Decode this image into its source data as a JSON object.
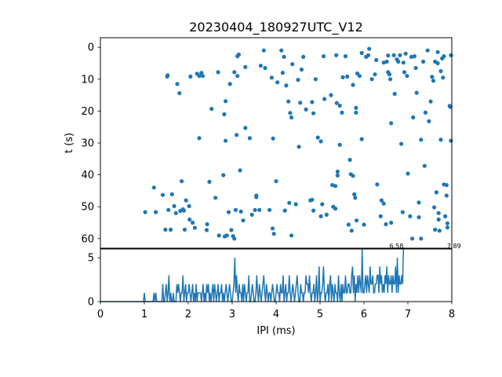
{
  "chart_data": [
    {
      "type": "scatter",
      "title": "20230404_180927UTC_V12",
      "ylabel": "t (s)",
      "xlim": [
        0,
        8
      ],
      "ylim": [
        63,
        -3
      ],
      "y_inverted": true,
      "yticks": [
        "0",
        "10",
        "20",
        "30",
        "40",
        "50",
        "60"
      ],
      "color": "#1f77b4",
      "points": [
        [
          1.02,
          51.7
        ],
        [
          1.22,
          44.0
        ],
        [
          1.26,
          51.7
        ],
        [
          1.42,
          46.3
        ],
        [
          1.48,
          57.2
        ],
        [
          1.52,
          9.2
        ],
        [
          1.53,
          8.8
        ],
        [
          1.55,
          51.0
        ],
        [
          1.6,
          57.2
        ],
        [
          1.63,
          46.1
        ],
        [
          1.68,
          49.8
        ],
        [
          1.72,
          52.0
        ],
        [
          1.75,
          11.5
        ],
        [
          1.8,
          14.4
        ],
        [
          1.82,
          51.3
        ],
        [
          1.85,
          42.0
        ],
        [
          1.88,
          50.8
        ],
        [
          1.9,
          51.2
        ],
        [
          1.92,
          57.2
        ],
        [
          1.95,
          48.0
        ],
        [
          2.02,
          49.8
        ],
        [
          2.03,
          54.0
        ],
        [
          2.05,
          9.2
        ],
        [
          2.1,
          55.0
        ],
        [
          2.15,
          56.6
        ],
        [
          2.2,
          8.3
        ],
        [
          2.25,
          9.0
        ],
        [
          2.25,
          28.5
        ],
        [
          2.3,
          8.0
        ],
        [
          2.33,
          9.0
        ],
        [
          2.42,
          57.3
        ],
        [
          2.43,
          55.5
        ],
        [
          2.48,
          42.2
        ],
        [
          2.53,
          19.3
        ],
        [
          2.62,
          47.2
        ],
        [
          2.68,
          7.8
        ],
        [
          2.7,
          59.0
        ],
        [
          2.8,
          40.1
        ],
        [
          2.83,
          59.3
        ],
        [
          2.82,
          21.0
        ],
        [
          2.85,
          16.9
        ],
        [
          2.85,
          29.3
        ],
        [
          2.88,
          59.0
        ],
        [
          2.92,
          51.7
        ],
        [
          2.95,
          11.5
        ],
        [
          2.98,
          57.3
        ],
        [
          3.02,
          59.2
        ],
        [
          3.05,
          60.0
        ],
        [
          3.05,
          7.8
        ],
        [
          3.08,
          51.0
        ],
        [
          3.1,
          27.5
        ],
        [
          3.12,
          9.0
        ],
        [
          3.12,
          2.8
        ],
        [
          3.15,
          2.3
        ],
        [
          3.18,
          38.6
        ],
        [
          3.2,
          51.5
        ],
        [
          3.25,
          54.3
        ],
        [
          3.3,
          25.3
        ],
        [
          3.3,
          6.2
        ],
        [
          3.4,
          28.5
        ],
        [
          3.45,
          52.5
        ],
        [
          3.55,
          47.0
        ],
        [
          3.55,
          46.5
        ],
        [
          3.52,
          51.0
        ],
        [
          3.62,
          51.0
        ],
        [
          3.65,
          5.8
        ],
        [
          3.72,
          1.0
        ],
        [
          3.75,
          6.5
        ],
        [
          3.85,
          51.0
        ],
        [
          3.9,
          9.5
        ],
        [
          3.93,
          28.6
        ],
        [
          3.92,
          56.8
        ],
        [
          3.95,
          58.5
        ],
        [
          4.0,
          42.0
        ],
        [
          4.03,
          11.0
        ],
        [
          4.12,
          1.0
        ],
        [
          4.15,
          8.0
        ],
        [
          4.18,
          3.0
        ],
        [
          4.2,
          51.2
        ],
        [
          4.23,
          12.0
        ],
        [
          4.28,
          17.0
        ],
        [
          4.32,
          20.6
        ],
        [
          4.3,
          48.8
        ],
        [
          4.35,
          22.0
        ],
        [
          4.35,
          59.0
        ],
        [
          4.37,
          5.3
        ],
        [
          4.45,
          49.2
        ],
        [
          4.5,
          10.2
        ],
        [
          4.52,
          31.2
        ],
        [
          4.55,
          17.4
        ],
        [
          4.58,
          7.0
        ],
        [
          4.62,
          3.0
        ],
        [
          4.68,
          19.5
        ],
        [
          4.78,
          48.0
        ],
        [
          4.82,
          47.8
        ],
        [
          4.85,
          20.7
        ],
        [
          4.82,
          17.2
        ],
        [
          4.85,
          51.2
        ],
        [
          4.9,
          10.0
        ],
        [
          4.95,
          28.3
        ],
        [
          5.02,
          29.5
        ],
        [
          5.05,
          49.2
        ],
        [
          5.02,
          53.0
        ],
        [
          5.08,
          2.8
        ],
        [
          5.1,
          16.2
        ],
        [
          5.15,
          52.5
        ],
        [
          5.25,
          15.0
        ],
        [
          5.28,
          43.2
        ],
        [
          5.3,
          50.0
        ],
        [
          5.35,
          43.5
        ],
        [
          5.35,
          50.6
        ],
        [
          5.37,
          2.5
        ],
        [
          5.38,
          17.5
        ],
        [
          5.4,
          39.0
        ],
        [
          5.4,
          40.2
        ],
        [
          5.45,
          18.3
        ],
        [
          5.45,
          30.6
        ],
        [
          5.5,
          20.5
        ],
        [
          5.52,
          9.4
        ],
        [
          5.58,
          2.8
        ],
        [
          5.62,
          9.2
        ],
        [
          5.65,
          55.6
        ],
        [
          5.68,
          35.3
        ],
        [
          5.7,
          39.8
        ],
        [
          5.72,
          57.5
        ],
        [
          5.75,
          11.8
        ],
        [
          5.75,
          40.3
        ],
        [
          5.78,
          46.1
        ],
        [
          5.8,
          47.2
        ],
        [
          5.82,
          19.0
        ],
        [
          5.83,
          54.3
        ],
        [
          5.82,
          20.5
        ],
        [
          5.85,
          8.2
        ],
        [
          5.9,
          9.0
        ],
        [
          5.95,
          1.8
        ],
        [
          5.95,
          28.8
        ],
        [
          6.0,
          55.6
        ],
        [
          6.05,
          3.0
        ],
        [
          6.1,
          2.5
        ],
        [
          6.12,
          0.5
        ],
        [
          6.18,
          10.0
        ],
        [
          6.25,
          8.5
        ],
        [
          6.28,
          4.0
        ],
        [
          6.3,
          43.0
        ],
        [
          6.38,
          53.0
        ],
        [
          6.4,
          48.0
        ],
        [
          6.45,
          4.8
        ],
        [
          6.45,
          49.0
        ],
        [
          6.5,
          55.5
        ],
        [
          6.52,
          4.5
        ],
        [
          6.55,
          2.6
        ],
        [
          6.55,
          7.8
        ],
        [
          6.58,
          8.5
        ],
        [
          6.6,
          10.0
        ],
        [
          6.62,
          55.0
        ],
        [
          6.62,
          23.8
        ],
        [
          6.68,
          2.5
        ],
        [
          6.7,
          14.6
        ],
        [
          6.75,
          3.8
        ],
        [
          6.78,
          4.5
        ],
        [
          6.82,
          2.5
        ],
        [
          6.85,
          30.3
        ],
        [
          6.88,
          51.7
        ],
        [
          6.9,
          4.8
        ],
        [
          6.92,
          7.8
        ],
        [
          6.95,
          2.0
        ],
        [
          6.98,
          9.0
        ],
        [
          7.0,
          39.6
        ],
        [
          7.05,
          53.0
        ],
        [
          7.08,
          3.0
        ],
        [
          7.1,
          60.0
        ],
        [
          7.12,
          22.0
        ],
        [
          7.15,
          2.8
        ],
        [
          7.18,
          6.5
        ],
        [
          7.2,
          14.3
        ],
        [
          7.25,
          48.7
        ],
        [
          7.25,
          53.3
        ],
        [
          7.3,
          29.0
        ],
        [
          7.3,
          60.0
        ],
        [
          7.35,
          4.5
        ],
        [
          7.38,
          37.2
        ],
        [
          7.4,
          20.5
        ],
        [
          7.45,
          1.0
        ],
        [
          7.48,
          23.2
        ],
        [
          7.52,
          17.0
        ],
        [
          7.55,
          9.3
        ],
        [
          7.58,
          10.5
        ],
        [
          7.6,
          50.2
        ],
        [
          7.62,
          4.5
        ],
        [
          7.62,
          57.2
        ],
        [
          7.65,
          45.5
        ],
        [
          7.68,
          5.0
        ],
        [
          7.68,
          1.5
        ],
        [
          7.7,
          52.0
        ],
        [
          7.7,
          54.0
        ],
        [
          7.72,
          57.5
        ],
        [
          7.75,
          29.0
        ],
        [
          7.75,
          7.5
        ],
        [
          7.78,
          3.5
        ],
        [
          7.8,
          9.5
        ],
        [
          7.82,
          43.0
        ],
        [
          7.82,
          2.8
        ],
        [
          7.85,
          53.0
        ],
        [
          7.88,
          46.5
        ],
        [
          7.88,
          43.2
        ],
        [
          7.9,
          56.5
        ],
        [
          7.9,
          55.2
        ],
        [
          7.95,
          18.4
        ],
        [
          7.97,
          18.7
        ],
        [
          7.98,
          2.5
        ],
        [
          7.98,
          29.3
        ]
      ]
    },
    {
      "type": "line",
      "xlabel": "IPI (ms)",
      "xlim": [
        0,
        8
      ],
      "ylim": [
        0,
        6
      ],
      "xticks": [
        "0",
        "1",
        "2",
        "3",
        "4",
        "5",
        "6",
        "7",
        "8"
      ],
      "yticks": [
        "0",
        "5"
      ],
      "color": "#1f77b4",
      "bin_width": 0.02,
      "values": [
        0,
        0,
        0,
        0,
        0,
        0,
        0,
        0,
        0,
        0,
        0,
        0,
        0,
        0,
        0,
        0,
        0,
        0,
        0,
        0,
        0,
        0,
        0,
        0,
        0,
        0,
        0,
        0,
        0,
        0,
        0,
        0,
        0,
        0,
        0,
        0,
        0,
        0,
        0,
        0,
        0,
        0,
        0,
        0,
        0,
        0,
        0,
        0,
        0,
        0,
        1,
        0,
        0,
        0,
        0,
        0,
        0,
        0,
        0,
        0,
        0,
        1,
        0,
        1,
        0,
        0,
        0,
        0,
        0,
        0,
        0,
        2,
        0,
        0,
        1,
        2,
        0,
        1,
        3,
        0,
        1,
        0,
        0,
        1,
        0,
        0,
        0,
        2,
        1,
        2,
        1,
        0,
        1,
        1,
        3,
        0,
        1,
        2,
        0,
        1,
        1,
        2,
        1,
        0,
        1,
        2,
        0,
        1,
        0,
        2,
        0,
        1,
        1,
        1,
        1,
        0,
        1,
        2,
        0,
        1,
        0,
        2,
        1,
        2,
        0,
        1,
        0,
        1,
        2,
        0,
        2,
        1,
        0,
        1,
        2,
        0,
        1,
        1,
        2,
        0,
        1,
        0,
        1,
        2,
        1,
        0,
        1,
        2,
        1,
        0,
        0,
        1,
        2,
        5,
        1,
        3,
        1,
        0,
        2,
        1,
        1,
        0,
        2,
        0,
        2,
        1,
        0,
        1,
        1,
        3,
        0,
        0,
        1,
        2,
        1,
        0,
        0,
        1,
        3,
        1,
        0,
        2,
        1,
        0,
        1,
        2,
        3,
        1,
        0,
        2,
        1,
        0,
        1,
        1,
        0,
        1,
        2,
        1,
        0,
        0,
        1,
        2,
        1,
        1,
        0,
        2,
        1,
        1,
        3,
        0,
        1,
        2,
        0,
        1,
        1,
        3,
        1,
        0,
        1,
        2,
        1,
        0,
        1,
        2,
        3,
        1,
        0,
        0,
        2,
        1,
        1,
        0,
        1,
        1,
        3,
        2,
        2,
        1,
        3,
        1,
        0,
        1,
        1,
        2,
        0,
        1,
        3,
        0,
        1,
        4,
        0,
        1,
        1,
        2,
        4,
        1,
        0,
        1,
        1,
        2,
        0,
        2,
        3,
        0,
        2,
        1,
        0,
        2,
        1,
        1,
        0,
        3,
        1,
        0,
        2,
        0,
        2,
        1,
        1,
        3,
        1,
        1,
        2,
        2,
        1,
        1,
        3,
        4,
        1,
        3,
        0,
        2,
        1,
        3,
        1,
        3,
        2,
        1,
        6,
        1,
        1,
        2,
        3,
        1,
        3,
        2,
        1,
        4,
        2,
        2,
        3,
        1,
        1,
        2,
        2,
        3,
        3,
        1,
        4,
        2,
        3,
        1,
        2,
        1,
        3,
        2,
        4,
        1,
        3,
        2,
        2,
        3,
        1,
        3,
        2,
        2,
        4,
        1,
        5,
        1,
        3,
        2,
        2,
        3,
        2,
        6
      ],
      "annotations": [
        {
          "x": 6.58,
          "y": 6,
          "text": "6.58"
        },
        {
          "x": 7.89,
          "y": 6,
          "text": "7.89"
        }
      ]
    }
  ]
}
